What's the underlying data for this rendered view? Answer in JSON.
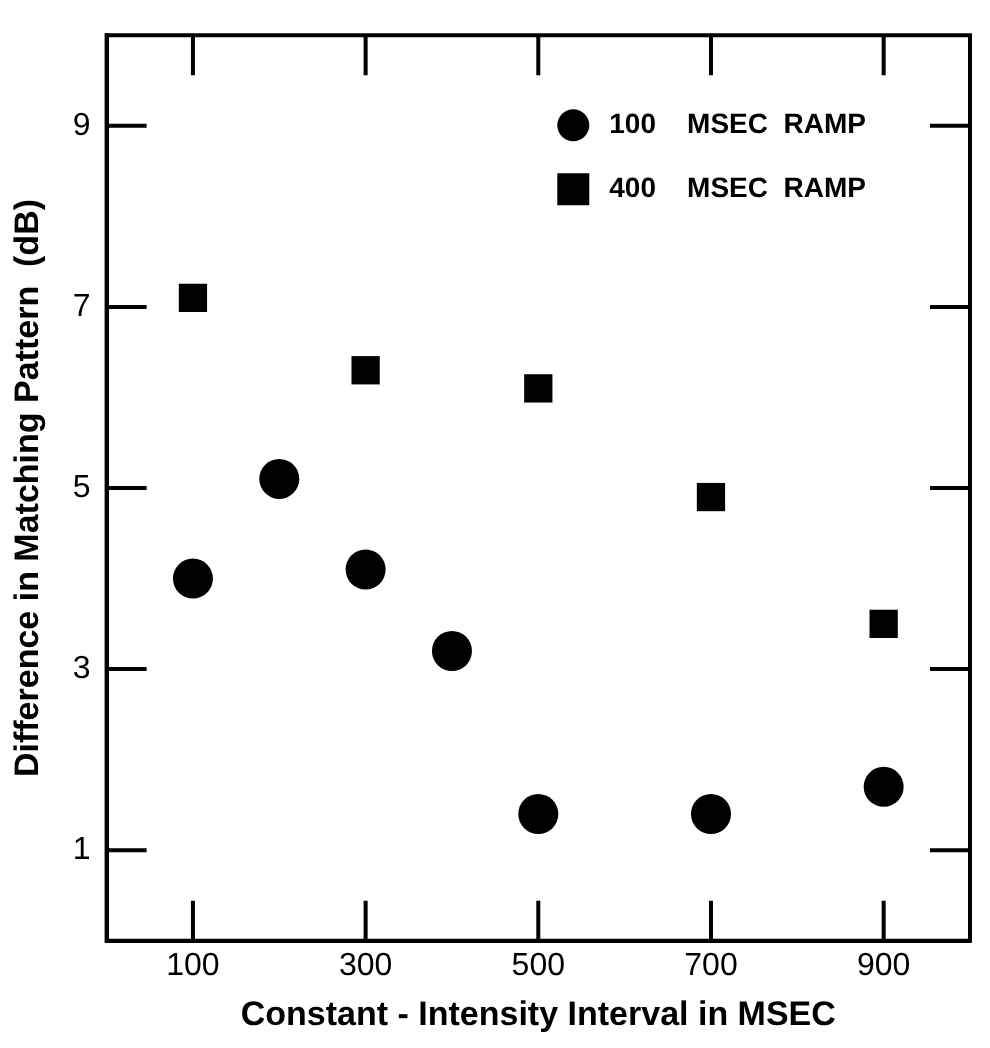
{
  "chart_data": {
    "type": "scatter",
    "xlabel": "Constant - Intensity Interval in MSEC",
    "ylabel": "Difference in Matching Pattern  (dB)",
    "xlim": [
      0,
      1000
    ],
    "xticks": [
      100,
      300,
      500,
      700,
      900
    ],
    "ylim": [
      0,
      10
    ],
    "yticks": [
      1,
      3,
      5,
      7,
      9
    ],
    "grid": false,
    "legend": "top right",
    "series": [
      {
        "name": "100    MSEC  RAMP",
        "color": "#000000",
        "marker": "circle",
        "x": [
          100,
          200,
          300,
          400,
          500,
          700,
          900
        ],
        "values": [
          4.0,
          5.1,
          4.1,
          3.2,
          1.4,
          1.4,
          1.7
        ]
      },
      {
        "name": "400    MSEC  RAMP",
        "color": "#000000",
        "marker": "square",
        "x": [
          100,
          300,
          500,
          700,
          900
        ],
        "values": [
          7.1,
          6.3,
          6.1,
          4.9,
          3.5
        ]
      }
    ]
  }
}
